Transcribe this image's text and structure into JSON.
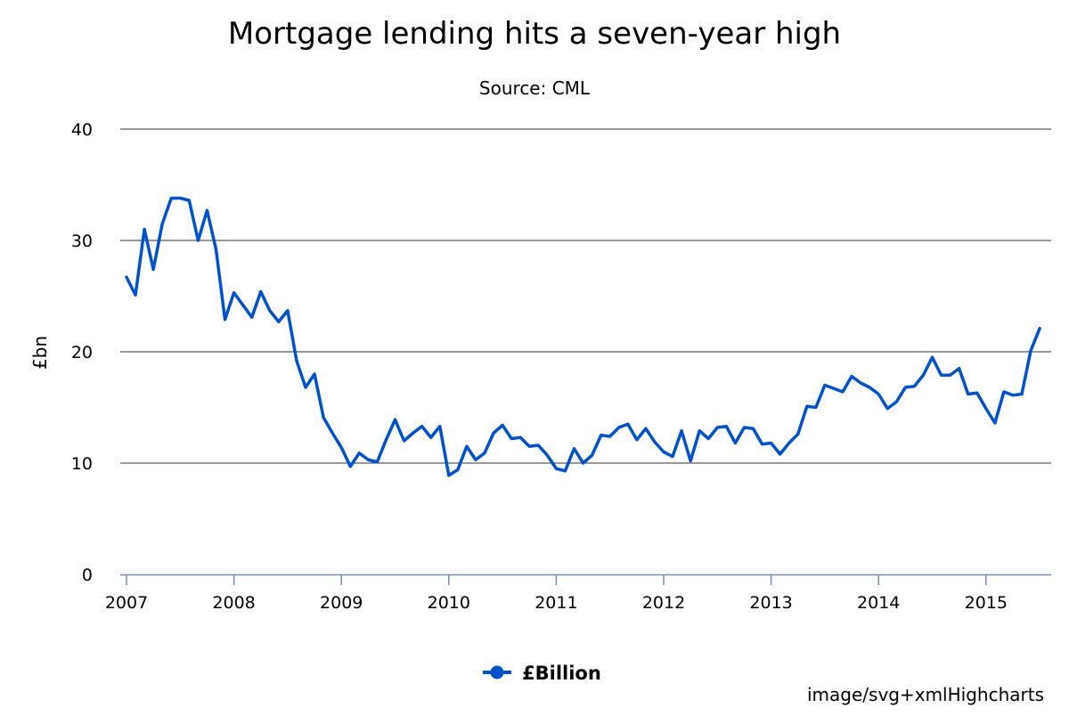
{
  "chart_data": {
    "type": "line",
    "title": "Mortgage lending hits a seven-year high",
    "subtitle": "Source: CML",
    "xlabel": "",
    "ylabel": "£bn",
    "x_start": "2007-01",
    "x_interval": "month",
    "x_tick_labels": [
      "2007",
      "2008",
      "2009",
      "2010",
      "2011",
      "2012",
      "2013",
      "2014",
      "2015"
    ],
    "ylim": [
      0,
      40
    ],
    "y_ticks": [
      0,
      10,
      20,
      30,
      40
    ],
    "grid": true,
    "legend_position": "bottom-center",
    "series": [
      {
        "name": "£Billion",
        "color": "#0052cc",
        "values": [
          26.7,
          25.1,
          31.0,
          27.4,
          31.5,
          33.8,
          33.8,
          33.6,
          30.0,
          32.7,
          29.2,
          22.9,
          25.3,
          24.2,
          23.1,
          25.4,
          23.7,
          22.7,
          23.7,
          19.2,
          16.8,
          18.0,
          14.1,
          12.7,
          11.4,
          9.7,
          10.9,
          10.3,
          10.1,
          12.1,
          13.9,
          12.0,
          12.7,
          13.3,
          12.3,
          13.3,
          8.9,
          9.4,
          11.5,
          10.3,
          10.9,
          12.7,
          13.4,
          12.2,
          12.3,
          11.5,
          11.6,
          10.7,
          9.5,
          9.3,
          11.3,
          10.0,
          10.7,
          12.5,
          12.4,
          13.2,
          13.5,
          12.1,
          13.1,
          11.9,
          11.0,
          10.6,
          12.9,
          10.2,
          12.9,
          12.2,
          13.2,
          13.3,
          11.8,
          13.2,
          13.1,
          11.7,
          11.8,
          10.8,
          11.8,
          12.6,
          15.1,
          15.0,
          17.0,
          16.7,
          16.4,
          17.8,
          17.2,
          16.8,
          16.2,
          14.9,
          15.5,
          16.8,
          16.9,
          17.9,
          19.5,
          17.9,
          17.9,
          18.5,
          16.2,
          16.3,
          14.9,
          13.6,
          16.4,
          16.1,
          16.2,
          20.1,
          22.1
        ]
      }
    ],
    "credits": "image/svg+xmlHighcharts"
  }
}
